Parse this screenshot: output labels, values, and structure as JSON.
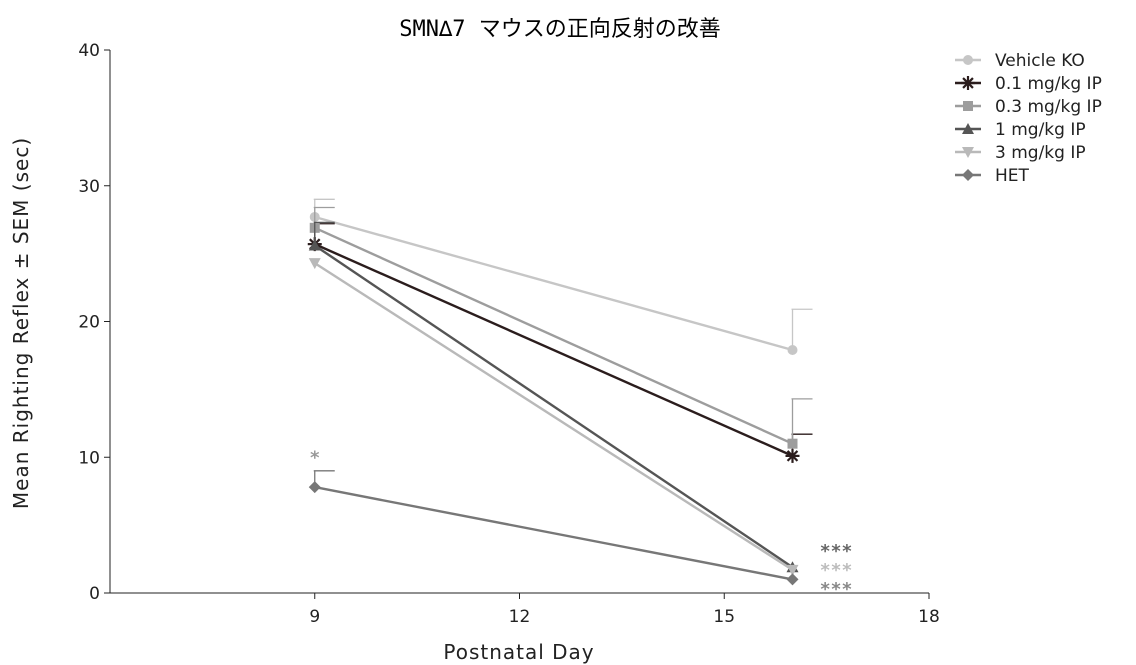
{
  "chart_data": {
    "type": "line",
    "title": "SMN∆7 マウスの正向反射の改善",
    "xlabel": "Postnatal Day",
    "ylabel": "Mean Righting Reflex ± SEM (sec)",
    "xlim": [
      6,
      18
    ],
    "ylim": [
      0,
      40
    ],
    "xticks": [
      9,
      12,
      15,
      18
    ],
    "yticks": [
      0,
      10,
      20,
      30,
      40
    ],
    "grid": false,
    "legend_position": "top-right",
    "x": [
      9,
      16
    ],
    "series": [
      {
        "name": "Vehicle KO",
        "values": [
          27.7,
          17.9
        ],
        "err": [
          1.3,
          3.0
        ],
        "color": "#c6c6c6",
        "marker": "circle"
      },
      {
        "name": "0.1 mg/kg IP",
        "values": [
          25.7,
          10.1
        ],
        "err": [
          1.5,
          1.6
        ],
        "color": "#2b1d1d",
        "marker": "asterisk"
      },
      {
        "name": "0.3 mg/kg IP",
        "values": [
          26.9,
          11.0
        ],
        "err": [
          1.5,
          3.3
        ],
        "color": "#9d9d9d",
        "marker": "square"
      },
      {
        "name": "1 mg/kg IP",
        "values": [
          25.6,
          1.9
        ],
        "err": [
          1.7,
          0
        ],
        "color": "#555555",
        "marker": "triangle-up"
      },
      {
        "name": "3 mg/kg IP",
        "values": [
          24.3,
          1.7
        ],
        "err": [
          0,
          0
        ],
        "color": "#b9b9b9",
        "marker": "triangle-down"
      },
      {
        "name": "HET",
        "values": [
          7.8,
          1.0
        ],
        "err": [
          1.2,
          0
        ],
        "color": "#777777",
        "marker": "diamond"
      }
    ],
    "annotations": [
      {
        "text": "*",
        "x": 9,
        "y": 10,
        "color": "#999999"
      },
      {
        "text": "***",
        "x": 16.4,
        "y": 3.1,
        "color": "#666666"
      },
      {
        "text": "***",
        "x": 16.4,
        "y": 1.7,
        "color": "#bcbcbc"
      },
      {
        "text": "***",
        "x": 16.4,
        "y": 0.3,
        "color": "#888888"
      }
    ]
  }
}
